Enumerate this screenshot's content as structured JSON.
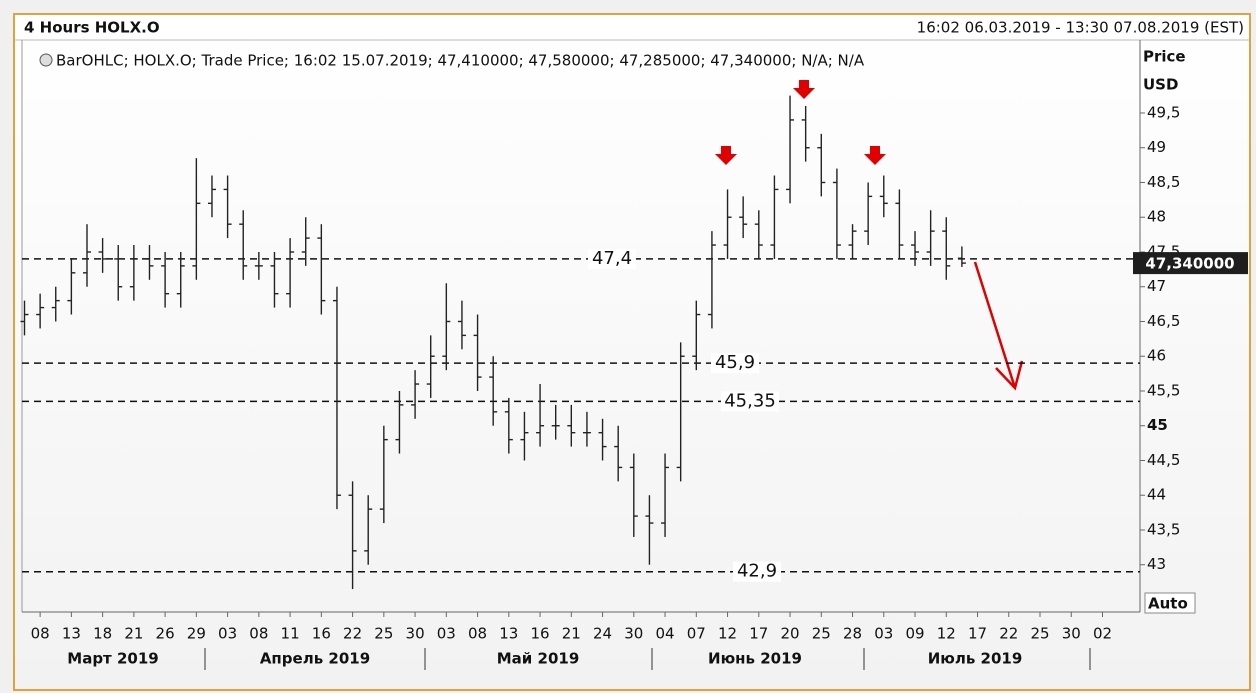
{
  "chart_data": {
    "type": "ohlc",
    "title": "4 Hours HOLX.O",
    "range_label": "16:02 06.03.2019 - 13:30 07.08.2019 (EST)",
    "legend": "BarOHLC; HOLX.O; Trade Price; 16:02 15.07.2019; 47,410000; 47,580000; 47,285000; 47,340000; N/A; N/A",
    "y_label_1": "Price",
    "y_label_2": "USD",
    "auto_label": "Auto",
    "color": "#222222",
    "level_color": "#111111",
    "xlim": [
      -0.58,
      35.2
    ],
    "ylim": [
      42.32,
      50.55
    ],
    "xticks": [
      {
        "value": 0,
        "label": "08"
      },
      {
        "value": 1,
        "label": "13"
      },
      {
        "value": 2,
        "label": "18"
      },
      {
        "value": 3,
        "label": "21"
      },
      {
        "value": 4,
        "label": "26"
      },
      {
        "value": 5,
        "label": "29"
      },
      {
        "value": 6,
        "label": "03"
      },
      {
        "value": 7,
        "label": "08"
      },
      {
        "value": 8,
        "label": "11"
      },
      {
        "value": 9,
        "label": "16"
      },
      {
        "value": 10,
        "label": "22"
      },
      {
        "value": 11,
        "label": "25"
      },
      {
        "value": 12,
        "label": "30"
      },
      {
        "value": 13,
        "label": "03"
      },
      {
        "value": 14,
        "label": "08"
      },
      {
        "value": 15,
        "label": "13"
      },
      {
        "value": 16,
        "label": "16"
      },
      {
        "value": 17,
        "label": "21"
      },
      {
        "value": 18,
        "label": "24"
      },
      {
        "value": 19,
        "label": "30"
      },
      {
        "value": 20,
        "label": "04"
      },
      {
        "value": 21,
        "label": "07"
      },
      {
        "value": 22,
        "label": "12"
      },
      {
        "value": 23,
        "label": "17"
      },
      {
        "value": 24,
        "label": "20"
      },
      {
        "value": 25,
        "label": "25"
      },
      {
        "value": 26,
        "label": "28"
      },
      {
        "value": 27,
        "label": "03"
      },
      {
        "value": 28,
        "label": "09"
      },
      {
        "value": 29,
        "label": "12"
      },
      {
        "value": 30,
        "label": "17"
      },
      {
        "value": 31,
        "label": "22"
      },
      {
        "value": 32,
        "label": "25"
      },
      {
        "value": 33,
        "label": "30"
      },
      {
        "value": 34,
        "label": "02"
      }
    ],
    "months": [
      "Март 2019",
      "Апрель 2019",
      "Май 2019",
      "Июнь 2019",
      "Июль 2019"
    ],
    "yticks": [
      43,
      {
        "value": 43.5,
        "label": "43,5"
      },
      44,
      {
        "value": 44.5,
        "label": "44,5"
      },
      45,
      {
        "value": 45.5,
        "label": "45,5"
      },
      46,
      {
        "value": 46.5,
        "label": "46,5"
      },
      47,
      {
        "value": 47.5,
        "label": "47,5"
      },
      48,
      {
        "value": 48.5,
        "label": "48,5"
      },
      49,
      {
        "value": 49.5,
        "label": "49,5"
      }
    ],
    "levels": [
      {
        "value": 47.4,
        "label": "47,4"
      },
      {
        "value": 45.9,
        "label": "45,9"
      },
      {
        "value": 45.35,
        "label": "45,35"
      },
      {
        "value": 42.9,
        "label": "42,9"
      }
    ],
    "last_price": {
      "value": 47.34,
      "label": "47,340000"
    },
    "x": [
      -0.5,
      0,
      0.5,
      1,
      1.5,
      2,
      2.5,
      3,
      3.5,
      4,
      4.5,
      5,
      5.5,
      6,
      6.5,
      7,
      7.5,
      8,
      8.5,
      9,
      9.5,
      10,
      10.5,
      11,
      11.5,
      12,
      12.5,
      13,
      13.5,
      14,
      14.5,
      15,
      15.5,
      16,
      16.5,
      17,
      17.5,
      18,
      18.5,
      19,
      19.5,
      20,
      20.5,
      21,
      21.5,
      22,
      22.5,
      23,
      23.5,
      24,
      24.5,
      25,
      25.5,
      26,
      26.5,
      27,
      27.5,
      28,
      28.5,
      29,
      29.5
    ],
    "open": [
      46.5,
      46.6,
      46.7,
      46.8,
      47.2,
      47.5,
      47.4,
      47.0,
      47.4,
      47.3,
      46.9,
      47.3,
      48.2,
      48.4,
      47.9,
      47.3,
      47.3,
      46.9,
      47.5,
      47.7,
      46.8,
      44.0,
      43.2,
      43.8,
      44.8,
      45.3,
      45.6,
      46.0,
      46.5,
      46.3,
      45.7,
      45.2,
      44.8,
      44.9,
      45.0,
      45.0,
      44.9,
      44.9,
      44.7,
      44.4,
      43.7,
      43.6,
      44.4,
      46.0,
      46.6,
      47.6,
      48.0,
      47.9,
      47.6,
      48.4,
      49.4,
      49.0,
      48.5,
      47.6,
      47.8,
      48.3,
      48.2,
      47.6,
      47.5,
      47.8,
      47.41
    ],
    "high": [
      46.8,
      46.9,
      47.0,
      47.4,
      47.9,
      47.7,
      47.6,
      47.6,
      47.6,
      47.5,
      47.5,
      48.85,
      48.6,
      48.6,
      48.1,
      47.5,
      47.5,
      47.7,
      48.0,
      47.9,
      47.0,
      44.2,
      44.0,
      45.0,
      45.5,
      45.8,
      46.3,
      47.05,
      46.8,
      46.6,
      46.0,
      45.4,
      45.2,
      45.6,
      45.3,
      45.3,
      45.2,
      45.1,
      45.0,
      44.6,
      44.0,
      44.6,
      46.2,
      46.8,
      47.8,
      48.4,
      48.3,
      48.1,
      48.6,
      49.75,
      49.6,
      49.2,
      48.7,
      47.9,
      48.5,
      48.6,
      48.4,
      47.8,
      48.1,
      48.0,
      47.58
    ],
    "low": [
      46.3,
      46.4,
      46.5,
      46.6,
      47.0,
      47.2,
      46.8,
      46.8,
      47.1,
      46.7,
      46.7,
      47.1,
      48.0,
      47.7,
      47.1,
      47.1,
      46.7,
      46.7,
      47.3,
      46.6,
      43.8,
      42.65,
      43.0,
      43.6,
      44.6,
      45.1,
      45.4,
      45.8,
      46.1,
      45.5,
      45.0,
      44.6,
      44.5,
      44.7,
      44.8,
      44.7,
      44.7,
      44.5,
      44.2,
      43.4,
      43.0,
      43.4,
      44.2,
      45.8,
      46.4,
      47.4,
      47.7,
      47.4,
      47.4,
      48.2,
      48.8,
      48.3,
      47.4,
      47.4,
      47.6,
      48.0,
      47.4,
      47.3,
      47.3,
      47.1,
      47.285
    ],
    "close": [
      46.6,
      46.7,
      46.8,
      47.2,
      47.5,
      47.4,
      47.0,
      47.4,
      47.3,
      46.9,
      47.3,
      48.2,
      48.4,
      47.9,
      47.3,
      47.3,
      46.9,
      47.5,
      47.7,
      46.8,
      44.0,
      43.2,
      43.8,
      44.8,
      45.3,
      45.6,
      46.0,
      46.5,
      46.3,
      45.7,
      45.2,
      44.8,
      44.9,
      45.0,
      45.0,
      44.9,
      44.9,
      44.7,
      44.4,
      43.7,
      43.6,
      44.4,
      46.0,
      46.6,
      47.6,
      48.0,
      47.9,
      47.6,
      48.4,
      49.4,
      49.0,
      48.5,
      47.6,
      47.8,
      48.3,
      48.2,
      47.6,
      47.5,
      47.8,
      47.3,
      47.34
    ]
  }
}
